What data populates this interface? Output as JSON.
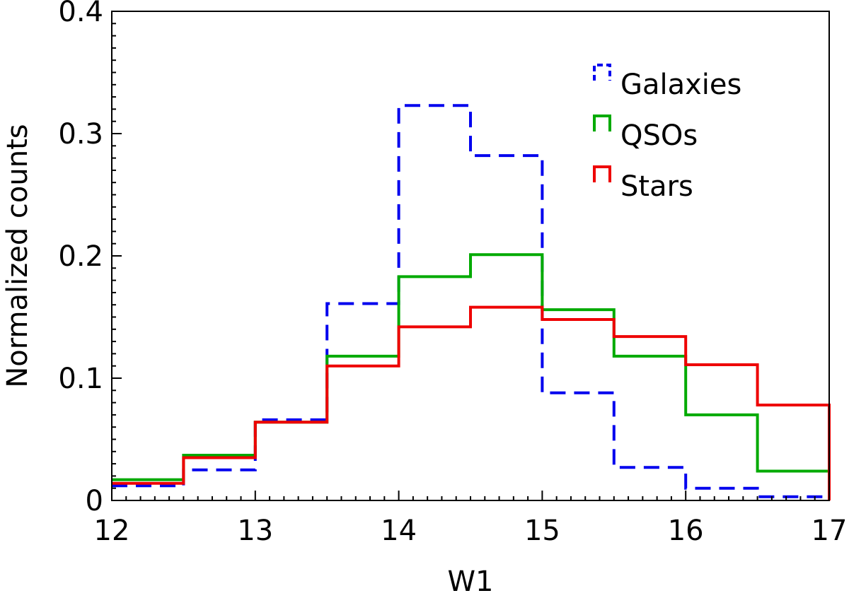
{
  "chart_data": {
    "type": "histogram",
    "xlabel": "W1",
    "ylabel": "Normalized counts",
    "xlim": [
      12,
      17
    ],
    "ylim": [
      0,
      0.4
    ],
    "x_ticks": [
      12,
      13,
      14,
      15,
      16,
      17
    ],
    "x_tick_labels": [
      "12",
      "13",
      "14",
      "15",
      "16",
      "17"
    ],
    "y_ticks": [
      0,
      0.1,
      0.2,
      0.3,
      0.4
    ],
    "y_tick_labels": [
      "0",
      "0.1",
      "0.2",
      "0.3",
      "0.4"
    ],
    "bin_edges": [
      12,
      12.5,
      13,
      13.5,
      14,
      14.5,
      15,
      15.5,
      16,
      16.5,
      17
    ],
    "legend_position": "top-right",
    "series": [
      {
        "name": "Galaxies",
        "style": "dashed",
        "color": "#0000ee",
        "values": [
          0.012,
          0.025,
          0.066,
          0.161,
          0.323,
          0.282,
          0.088,
          0.027,
          0.01,
          0.003
        ]
      },
      {
        "name": "QSOs",
        "style": "solid",
        "color": "#00aa00",
        "values": [
          0.017,
          0.037,
          0.064,
          0.118,
          0.183,
          0.201,
          0.156,
          0.118,
          0.07,
          0.024
        ]
      },
      {
        "name": "Stars",
        "style": "solid",
        "color": "#ee0000",
        "values": [
          0.014,
          0.035,
          0.064,
          0.11,
          0.142,
          0.158,
          0.148,
          0.134,
          0.111,
          0.078
        ]
      }
    ]
  }
}
